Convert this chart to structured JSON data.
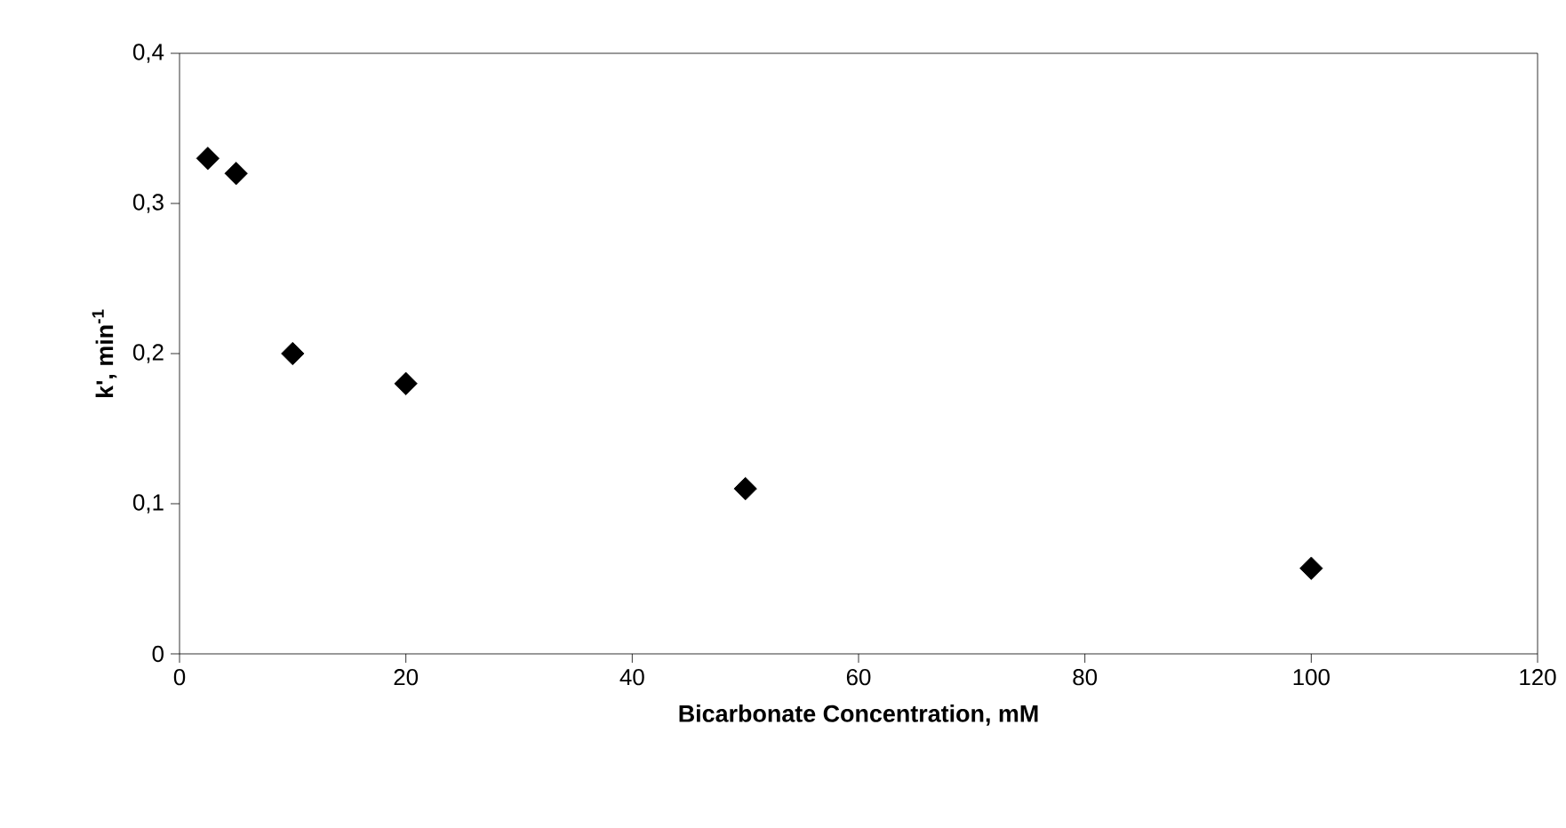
{
  "chart_data": {
    "type": "scatter",
    "xlabel": "Bicarbonate Concentration, mM",
    "ylabel": "k', min$^{-1}$",
    "x": [
      2.5,
      5,
      10,
      20,
      50,
      100
    ],
    "values": [
      0.33,
      0.32,
      0.2,
      0.18,
      0.11,
      0.057
    ],
    "color": "#000000",
    "marker": "diamond",
    "xlim": [
      0,
      120
    ],
    "xticks": [
      0,
      20,
      40,
      60,
      80,
      100,
      120
    ],
    "ylim": [
      0,
      0.4
    ],
    "yticks": [
      0,
      {
        "value": 0.1,
        "label": "0,1"
      },
      {
        "value": 0.2,
        "label": "0,2"
      },
      {
        "value": 0.3,
        "label": "0,3"
      },
      {
        "value": 0.4,
        "label": "0,4"
      }
    ],
    "grid": false
  }
}
